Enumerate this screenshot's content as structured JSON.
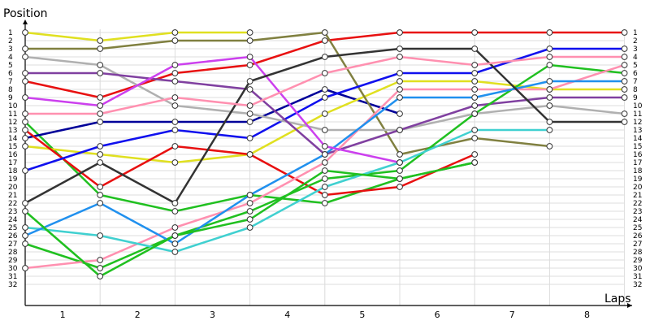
{
  "chart_data": {
    "type": "line",
    "ylabel": "Position",
    "xlabel": "Laps",
    "x": [
      0,
      1,
      2,
      3,
      4,
      5,
      6,
      7,
      8
    ],
    "x_tick_labels": [
      "1",
      "2",
      "3",
      "4",
      "5",
      "6",
      "7",
      "8"
    ],
    "y_ticks": [
      1,
      2,
      3,
      4,
      5,
      6,
      7,
      8,
      9,
      10,
      11,
      12,
      13,
      14,
      15,
      16,
      17,
      18,
      19,
      20,
      21,
      22,
      23,
      24,
      25,
      26,
      27,
      28,
      29,
      30,
      31,
      32
    ],
    "y_inverted": true,
    "xlim": [
      0,
      8
    ],
    "ylim": [
      1,
      32
    ],
    "grid": true,
    "series": [
      {
        "color": "#e81010",
        "values": [
          7,
          9,
          6,
          5,
          2,
          1,
          1,
          1,
          1
        ]
      },
      {
        "color": "#20c020",
        "values": [
          12,
          21,
          23,
          21,
          22,
          19,
          17,
          null,
          null
        ]
      },
      {
        "color": "#000099",
        "values": [
          14,
          12,
          12,
          12,
          8,
          11,
          null,
          null,
          null
        ]
      },
      {
        "color": "#e0e020",
        "values": [
          1,
          2,
          1,
          1,
          null,
          null,
          null,
          null,
          null
        ]
      },
      {
        "color": "#e0e020",
        "values": [
          15,
          16,
          17,
          16,
          11,
          7,
          7,
          8,
          8
        ]
      },
      {
        "color": "#808040",
        "values": [
          3,
          3,
          2,
          2,
          1,
          16,
          14,
          15,
          null
        ]
      },
      {
        "color": "#e81010",
        "values": [
          13,
          20,
          15,
          16,
          21,
          20,
          16,
          null,
          null
        ]
      },
      {
        "color": "#1010ee",
        "values": [
          18,
          15,
          13,
          14,
          9,
          6,
          6,
          3,
          3
        ]
      },
      {
        "color": "#b0b0b0",
        "values": [
          4,
          5,
          10,
          11,
          13,
          13,
          11,
          10,
          11
        ]
      },
      {
        "color": "#8040a0",
        "values": [
          6,
          6,
          7,
          8,
          16,
          13,
          10,
          9,
          9
        ]
      },
      {
        "color": "#20c020",
        "values": [
          27,
          30,
          26,
          23,
          19,
          18,
          11,
          5,
          6
        ]
      },
      {
        "color": "#ff90b0",
        "values": [
          30,
          29,
          25,
          22,
          17,
          8,
          8,
          8,
          5
        ]
      },
      {
        "color": "#40d0d0",
        "values": [
          25,
          26,
          28,
          25,
          20,
          17,
          13,
          13,
          null
        ]
      },
      {
        "color": "#2090ee",
        "values": [
          26,
          22,
          27,
          21,
          16,
          9,
          9,
          7,
          7
        ]
      },
      {
        "color": "#cc40ee",
        "values": [
          9,
          10,
          5,
          4,
          15,
          17,
          null,
          null,
          null
        ]
      },
      {
        "color": "#333333",
        "values": [
          22,
          17,
          22,
          7,
          4,
          3,
          3,
          12,
          12
        ]
      },
      {
        "color": "#20c020",
        "values": [
          23,
          31,
          26,
          24,
          18,
          19,
          17,
          null,
          null
        ]
      },
      {
        "color": "#ff90b0",
        "values": [
          11,
          11,
          9,
          10,
          6,
          4,
          5,
          4,
          4
        ]
      }
    ]
  }
}
